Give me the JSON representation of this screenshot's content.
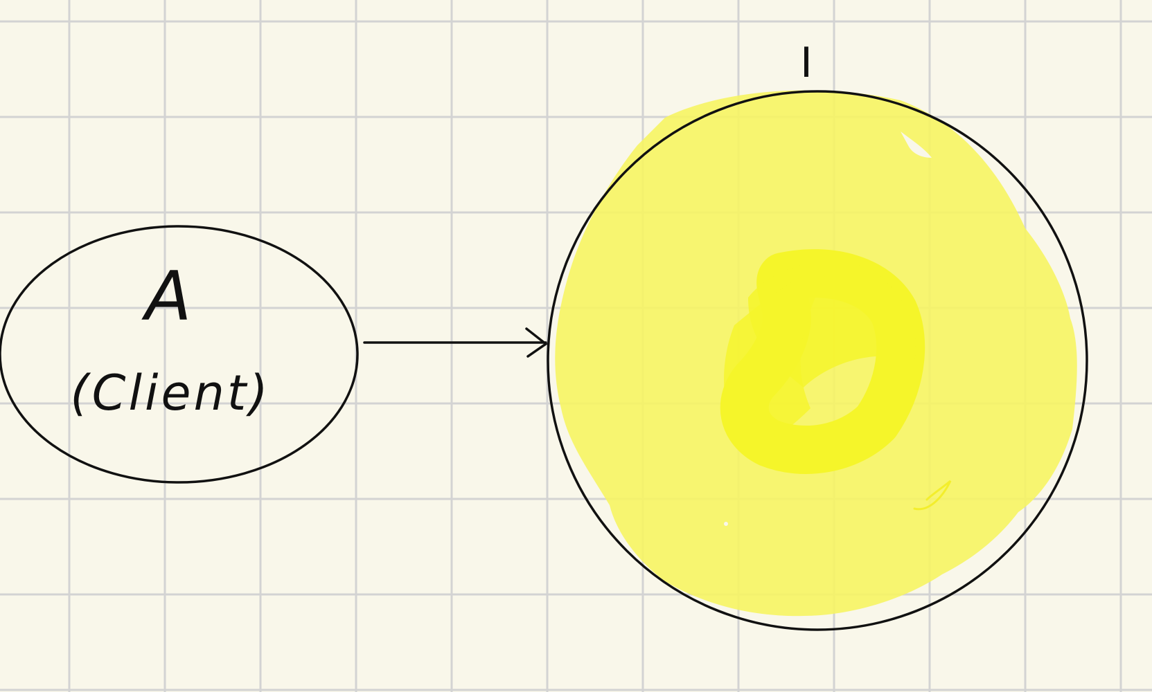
{
  "colors": {
    "paper": "#f9f7ea",
    "grid": "#d3d3d3",
    "ink": "#111111",
    "highlight_outer": "#f6f463",
    "highlight_inner": "#f5f52a"
  },
  "nodes": {
    "client": {
      "letter": "A",
      "sublabel": "(Client)"
    },
    "target": {
      "letter": "I"
    }
  },
  "connections": [
    {
      "from": "client",
      "to": "target",
      "style": "arrow"
    }
  ]
}
